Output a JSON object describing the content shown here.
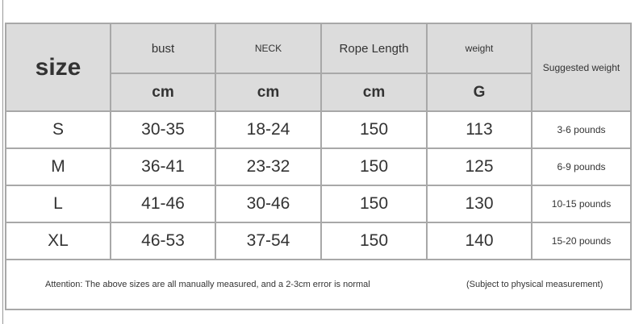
{
  "header": {
    "size": "size",
    "bust": "bust",
    "neck": "NECK",
    "rope": "Rope Length",
    "weight": "weight",
    "suggested": "Suggested weight",
    "units": [
      "cm",
      "cm",
      "cm",
      "G"
    ]
  },
  "rows": [
    {
      "size": "S",
      "bust": "30-35",
      "neck": "18-24",
      "rope": "150",
      "weight": "113",
      "suggested": "3-6 pounds"
    },
    {
      "size": "M",
      "bust": "36-41",
      "neck": "23-32",
      "rope": "150",
      "weight": "125",
      "suggested": "6-9 pounds"
    },
    {
      "size": "L",
      "bust": "41-46",
      "neck": "30-46",
      "rope": "150",
      "weight": "130",
      "suggested": "10-15 pounds"
    },
    {
      "size": "XL",
      "bust": "46-53",
      "neck": "37-54",
      "rope": "150",
      "weight": "140",
      "suggested": "15-20 pounds"
    }
  ],
  "footer": {
    "attention": "Attention: The above sizes are all manually measured, and a 2-3cm error is normal",
    "note": "(Subject to physical measurement)"
  },
  "colors": {
    "header_bg": "#dcdcdc",
    "border": "#a8a8a8"
  }
}
